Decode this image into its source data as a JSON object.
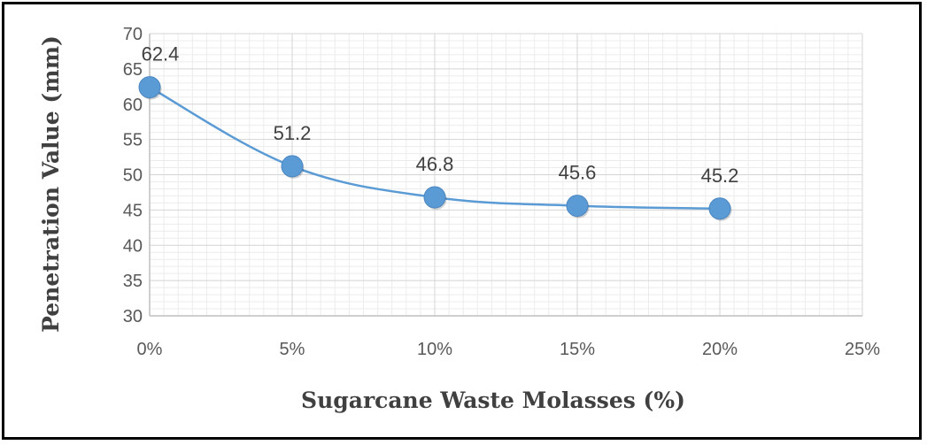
{
  "chart_data": {
    "type": "line",
    "title": "",
    "xlabel": "Sugarcane Waste Molasses (%)",
    "ylabel": "Penetration Value (mm)",
    "x": [
      0,
      5,
      10,
      15,
      20
    ],
    "x_ticks": [
      0,
      5,
      10,
      15,
      20,
      25
    ],
    "x_tick_labels": [
      "0%",
      "5%",
      "10%",
      "15%",
      "20%",
      "25%"
    ],
    "xlim": [
      0,
      25
    ],
    "ylim": [
      30,
      70
    ],
    "y_ticks": [
      30,
      35,
      40,
      45,
      50,
      55,
      60,
      65,
      70
    ],
    "y_tick_labels": [
      "30",
      "35",
      "40",
      "45",
      "50",
      "55",
      "60",
      "65",
      "70"
    ],
    "series": [
      {
        "values": [
          62.4,
          51.2,
          46.8,
          45.6,
          45.2
        ],
        "data_labels": [
          "62.4",
          "51.2",
          "46.8",
          "45.6",
          "45.2"
        ],
        "color": "#5b9bd5",
        "smooth": true,
        "marker": "circle"
      }
    ],
    "grid": true,
    "legend": "none"
  }
}
